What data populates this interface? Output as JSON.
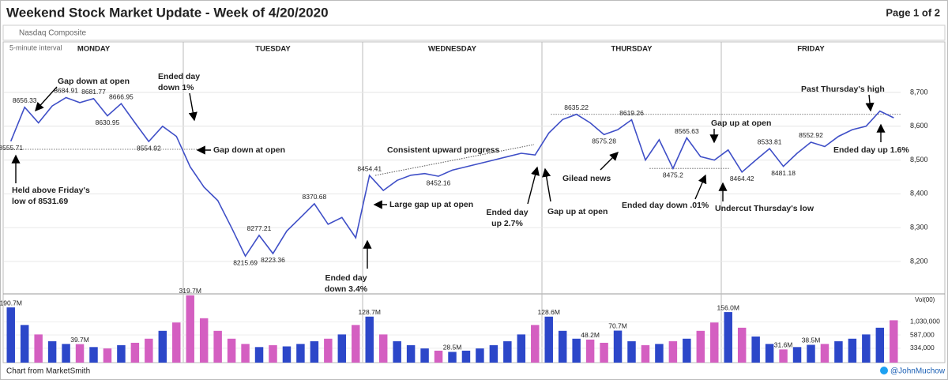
{
  "header": {
    "title": "Weekend Stock Market Update - Week of 4/20/2020",
    "page": "Page 1 of 2",
    "subtitle": "Nasdaq Composite"
  },
  "chart_data": [
    {
      "type": "line",
      "interval": "5-minute interval",
      "days": [
        "MONDAY",
        "TUESDAY",
        "WEDNESDAY",
        "THURSDAY",
        "FRIDAY"
      ],
      "values": [
        8555.71,
        8656.33,
        8610,
        8660,
        8684.91,
        8670,
        8681.77,
        8630.95,
        8666.95,
        8610,
        8554.92,
        8600,
        8570,
        8480,
        8420,
        8380,
        8300,
        8215.69,
        8277.21,
        8223.36,
        8290,
        8330,
        8370.68,
        8310,
        8330,
        8270,
        8454.41,
        8410,
        8440,
        8455,
        8460,
        8452.16,
        8470,
        8480,
        8490,
        8500,
        8510,
        8520,
        8515,
        8580,
        8620,
        8635.22,
        8610,
        8575.28,
        8590,
        8619.26,
        8500,
        8560,
        8475.2,
        8565.63,
        8510,
        8500,
        8530,
        8464.42,
        8500,
        8533.81,
        8481.18,
        8520,
        8552.92,
        8540,
        8570,
        8590,
        8600,
        8645,
        8625
      ],
      "value_labels": [
        "8555.71",
        "8656.33",
        null,
        null,
        "8684.91",
        null,
        "8681.77",
        "8630.95",
        "8666.95",
        null,
        "8554.92",
        null,
        null,
        null,
        null,
        null,
        null,
        "8215.69",
        "8277.21",
        "8223.36",
        null,
        null,
        "8370.68",
        null,
        null,
        null,
        "8454.41",
        null,
        null,
        null,
        null,
        "8452.16",
        null,
        null,
        null,
        null,
        null,
        null,
        null,
        null,
        null,
        "8635.22",
        null,
        "8575.28",
        null,
        "8619.26",
        null,
        null,
        "8475.2",
        "8565.63",
        null,
        null,
        null,
        "8464.42",
        null,
        "8533.81",
        "8481.18",
        null,
        "8552.92",
        null,
        null,
        null,
        null,
        null,
        null
      ],
      "color": "#3f4fc7",
      "ylim": [
        8104,
        8845
      ],
      "yticks": [
        {
          "value": 8200,
          "label": "8,200"
        },
        {
          "value": 8300,
          "label": "8,300"
        },
        {
          "value": 8400,
          "label": "8,400"
        },
        {
          "value": 8500,
          "label": "8,500"
        },
        {
          "value": 8600,
          "label": "8,600"
        },
        {
          "value": 8700,
          "label": "8,700"
        }
      ],
      "grid": true,
      "reference_lines": [
        8531.69,
        8635.22,
        8475.2
      ],
      "annotations": [
        [
          "Gap down at open"
        ],
        [
          "Ended day",
          "down 1%"
        ],
        [
          "Gap down at open"
        ],
        [
          "Held above Friday's",
          "low of 8531.69"
        ],
        [
          "Consistent upward progress"
        ],
        [
          "Large gap up at open"
        ],
        [
          "Ended day",
          "down 3.4%"
        ],
        [
          "Ended day",
          "up 2.7%"
        ],
        [
          "Gap up at open"
        ],
        [
          "Gilead news"
        ],
        [
          "Ended day down .01%"
        ],
        [
          "Gap up at open"
        ],
        [
          "Undercut Thursday's low"
        ],
        [
          "Past Thursday's high"
        ],
        [
          "Ended day up 1.6%"
        ]
      ]
    },
    {
      "type": "bar",
      "axis_label": "Vol(00)",
      "values": [
        1907000,
        900000,
        600000,
        450000,
        400000,
        397000,
        350000,
        330000,
        380000,
        420000,
        500000,
        700000,
        1000000,
        3197000,
        1200000,
        700000,
        500000,
        400000,
        350000,
        380000,
        360000,
        400000,
        450000,
        500000,
        600000,
        900000,
        1287000,
        600000,
        450000,
        380000,
        330000,
        300000,
        285000,
        300000,
        330000,
        380000,
        450000,
        600000,
        900000,
        1286000,
        700000,
        500000,
        482000,
        420000,
        707000,
        450000,
        380000,
        400000,
        450000,
        500000,
        700000,
        1000000,
        1560000,
        800000,
        550000,
        400000,
        316000,
        350000,
        385000,
        400000,
        450000,
        500000,
        600000,
        800000,
        1100000
      ],
      "value_labels": [
        "190.7M",
        null,
        null,
        null,
        null,
        "39.7M",
        null,
        null,
        null,
        null,
        null,
        null,
        null,
        "319.7M",
        null,
        null,
        null,
        null,
        null,
        null,
        null,
        null,
        null,
        null,
        null,
        null,
        "128.7M",
        null,
        null,
        null,
        null,
        null,
        "28.5M",
        null,
        null,
        null,
        null,
        null,
        null,
        "128.6M",
        null,
        null,
        "48.2M",
        null,
        "70.7M",
        null,
        null,
        null,
        null,
        null,
        null,
        null,
        "156.0M",
        null,
        null,
        null,
        "31.6M",
        null,
        "38.5M",
        null,
        null,
        null,
        null,
        null,
        null
      ],
      "colors": {
        "up": "#2c47c9",
        "down": "#d45fc1"
      },
      "log_scale": true,
      "ylim": [
        180000,
        3400000
      ],
      "yticks": [
        {
          "value": 334000,
          "label": "334,000"
        },
        {
          "value": 587000,
          "label": "587,000"
        },
        {
          "value": 1030000,
          "label": "1,030,000"
        }
      ]
    }
  ],
  "footer": {
    "source": "Chart from MarketSmith",
    "handle": "@JohnMuchow"
  }
}
